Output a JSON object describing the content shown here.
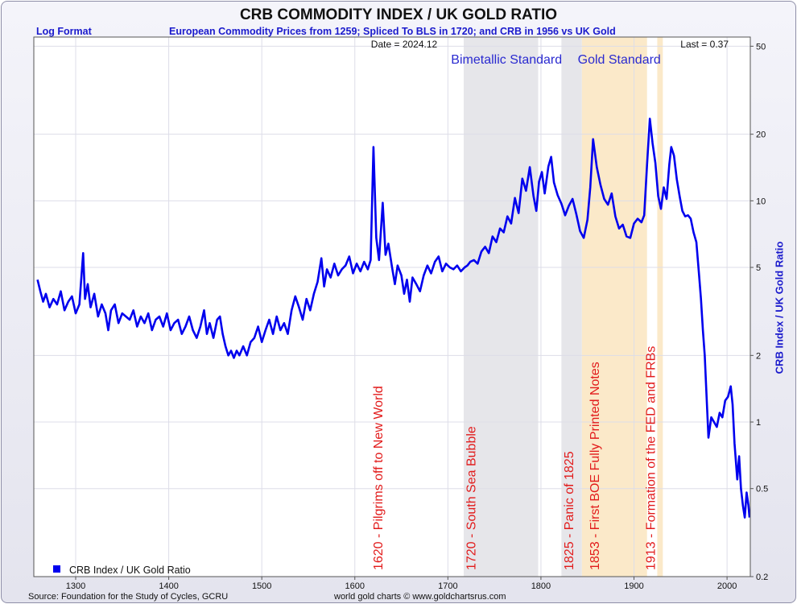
{
  "header": {
    "title": "CRB COMMODITY INDEX / UK GOLD RATIO",
    "left_note": "Log Format",
    "subtitle": "European Commodity Prices from 1259; Spliced To BLS in 1720; and CRB in 1956 vs UK Gold",
    "date_label": "Date = 2024.12",
    "last_label": "Last = 0.37"
  },
  "footer": {
    "source": "Source: Foundation for the Study of Cycles, GCRU",
    "credit": "world gold charts © www.goldchartsrus.com"
  },
  "colors": {
    "line": "#0000ee",
    "event_text": "#e21b1b",
    "bimetallic_band": "#e6e6ea",
    "gold_band": "#fbe9c9",
    "grid": "#dddde8",
    "axis_text": "#111111"
  },
  "chart_data": {
    "type": "line",
    "title": "CRB COMMODITY INDEX / UK GOLD RATIO",
    "ylabel": "CRB Index / UK Gold Ratio",
    "xlabel": "",
    "y_scale": "log",
    "xlim": [
      1255,
      2025
    ],
    "ylim": [
      0.2,
      55
    ],
    "x_ticks": [
      1300,
      1400,
      1500,
      1600,
      1700,
      1800,
      1900,
      2000
    ],
    "y_ticks": [
      50,
      20,
      10,
      5,
      2,
      1,
      0.5,
      0.2
    ],
    "grid": true,
    "legend": {
      "position": "bottom-left",
      "entries": [
        "CRB Index / UK Gold Ratio"
      ]
    },
    "regimes": [
      {
        "label": "Bimetallic Standard",
        "start": 1717,
        "end": 1797
      },
      {
        "label": "Gold Standard",
        "start": 1844,
        "end": 1914
      },
      {
        "label": "",
        "start": 1925,
        "end": 1931
      }
    ],
    "extra_band": {
      "start": 1822,
      "end": 1844
    },
    "events": [
      {
        "year": 1620,
        "label": "1620 - Pilgrims off to New World"
      },
      {
        "year": 1720,
        "label": "1720 - South Sea Bubble"
      },
      {
        "year": 1825,
        "label": "1825 - Panic of 1825"
      },
      {
        "year": 1853,
        "label": "1853 - First BOE Fully Printed Notes"
      },
      {
        "year": 1913,
        "label": "1913 - Formation of the FED and FRBs"
      }
    ],
    "series": [
      {
        "name": "CRB Index / UK Gold Ratio",
        "points": [
          [
            1259,
            4.4
          ],
          [
            1262,
            3.9
          ],
          [
            1265,
            3.5
          ],
          [
            1268,
            3.8
          ],
          [
            1272,
            3.3
          ],
          [
            1276,
            3.6
          ],
          [
            1280,
            3.4
          ],
          [
            1284,
            3.9
          ],
          [
            1288,
            3.2
          ],
          [
            1292,
            3.5
          ],
          [
            1296,
            3.7
          ],
          [
            1300,
            3.1
          ],
          [
            1304,
            3.4
          ],
          [
            1308,
            5.8
          ],
          [
            1310,
            3.6
          ],
          [
            1313,
            4.2
          ],
          [
            1316,
            3.3
          ],
          [
            1320,
            3.8
          ],
          [
            1324,
            3.0
          ],
          [
            1328,
            3.4
          ],
          [
            1332,
            3.1
          ],
          [
            1335,
            2.6
          ],
          [
            1338,
            3.2
          ],
          [
            1342,
            3.4
          ],
          [
            1346,
            2.8
          ],
          [
            1350,
            3.1
          ],
          [
            1354,
            3.0
          ],
          [
            1358,
            2.9
          ],
          [
            1362,
            3.2
          ],
          [
            1366,
            2.7
          ],
          [
            1370,
            3.0
          ],
          [
            1374,
            2.8
          ],
          [
            1378,
            3.1
          ],
          [
            1382,
            2.6
          ],
          [
            1386,
            2.9
          ],
          [
            1390,
            3.0
          ],
          [
            1394,
            2.7
          ],
          [
            1398,
            3.1
          ],
          [
            1402,
            2.6
          ],
          [
            1406,
            2.8
          ],
          [
            1410,
            2.9
          ],
          [
            1414,
            2.5
          ],
          [
            1418,
            2.7
          ],
          [
            1422,
            3.0
          ],
          [
            1426,
            2.6
          ],
          [
            1430,
            2.4
          ],
          [
            1434,
            2.7
          ],
          [
            1438,
            3.2
          ],
          [
            1441,
            2.5
          ],
          [
            1444,
            2.8
          ],
          [
            1448,
            2.4
          ],
          [
            1452,
            2.9
          ],
          [
            1455,
            3.0
          ],
          [
            1458,
            2.5
          ],
          [
            1461,
            2.2
          ],
          [
            1464,
            2.0
          ],
          [
            1467,
            2.1
          ],
          [
            1470,
            1.95
          ],
          [
            1473,
            2.1
          ],
          [
            1476,
            2.0
          ],
          [
            1480,
            2.2
          ],
          [
            1484,
            2.0
          ],
          [
            1488,
            2.3
          ],
          [
            1492,
            2.4
          ],
          [
            1496,
            2.7
          ],
          [
            1500,
            2.3
          ],
          [
            1504,
            2.6
          ],
          [
            1508,
            2.9
          ],
          [
            1512,
            2.5
          ],
          [
            1516,
            3.0
          ],
          [
            1520,
            2.6
          ],
          [
            1524,
            2.8
          ],
          [
            1528,
            2.5
          ],
          [
            1532,
            3.2
          ],
          [
            1536,
            3.7
          ],
          [
            1540,
            3.3
          ],
          [
            1544,
            2.9
          ],
          [
            1548,
            3.6
          ],
          [
            1552,
            3.2
          ],
          [
            1556,
            3.8
          ],
          [
            1560,
            4.3
          ],
          [
            1564,
            5.5
          ],
          [
            1567,
            4.1
          ],
          [
            1570,
            4.9
          ],
          [
            1574,
            4.5
          ],
          [
            1578,
            5.2
          ],
          [
            1582,
            4.6
          ],
          [
            1586,
            4.9
          ],
          [
            1590,
            5.1
          ],
          [
            1594,
            5.6
          ],
          [
            1598,
            4.7
          ],
          [
            1602,
            5.2
          ],
          [
            1606,
            4.8
          ],
          [
            1610,
            5.3
          ],
          [
            1614,
            4.9
          ],
          [
            1617,
            5.4
          ],
          [
            1620,
            17.5
          ],
          [
            1623,
            6.8
          ],
          [
            1626,
            5.4
          ],
          [
            1630,
            9.8
          ],
          [
            1633,
            5.7
          ],
          [
            1636,
            6.4
          ],
          [
            1640,
            5.0
          ],
          [
            1643,
            4.2
          ],
          [
            1646,
            5.1
          ],
          [
            1650,
            4.6
          ],
          [
            1653,
            3.8
          ],
          [
            1656,
            4.4
          ],
          [
            1659,
            3.5
          ],
          [
            1662,
            4.5
          ],
          [
            1666,
            4.2
          ],
          [
            1670,
            3.9
          ],
          [
            1674,
            4.6
          ],
          [
            1678,
            5.1
          ],
          [
            1682,
            4.7
          ],
          [
            1686,
            5.3
          ],
          [
            1690,
            5.6
          ],
          [
            1694,
            4.8
          ],
          [
            1698,
            5.2
          ],
          [
            1702,
            5.0
          ],
          [
            1706,
            4.9
          ],
          [
            1710,
            5.1
          ],
          [
            1714,
            4.8
          ],
          [
            1718,
            5.0
          ],
          [
            1721,
            5.1
          ],
          [
            1724,
            5.3
          ],
          [
            1728,
            5.4
          ],
          [
            1732,
            5.2
          ],
          [
            1736,
            5.9
          ],
          [
            1740,
            6.2
          ],
          [
            1744,
            5.8
          ],
          [
            1748,
            6.9
          ],
          [
            1752,
            6.5
          ],
          [
            1756,
            7.5
          ],
          [
            1760,
            7.2
          ],
          [
            1764,
            8.5
          ],
          [
            1768,
            7.9
          ],
          [
            1772,
            10.3
          ],
          [
            1776,
            8.8
          ],
          [
            1780,
            12.6
          ],
          [
            1784,
            11.1
          ],
          [
            1788,
            14.2
          ],
          [
            1792,
            10.5
          ],
          [
            1795,
            9.0
          ],
          [
            1798,
            12.2
          ],
          [
            1801,
            13.5
          ],
          [
            1804,
            10.8
          ],
          [
            1808,
            14.3
          ],
          [
            1811,
            15.8
          ],
          [
            1814,
            12.1
          ],
          [
            1818,
            10.6
          ],
          [
            1822,
            9.7
          ],
          [
            1826,
            8.6
          ],
          [
            1830,
            9.5
          ],
          [
            1834,
            10.2
          ],
          [
            1838,
            8.7
          ],
          [
            1842,
            7.3
          ],
          [
            1846,
            6.8
          ],
          [
            1850,
            8.2
          ],
          [
            1853,
            11.5
          ],
          [
            1856,
            19.0
          ],
          [
            1860,
            14.2
          ],
          [
            1864,
            11.8
          ],
          [
            1868,
            10.2
          ],
          [
            1872,
            9.6
          ],
          [
            1876,
            10.8
          ],
          [
            1880,
            8.5
          ],
          [
            1884,
            7.5
          ],
          [
            1888,
            7.8
          ],
          [
            1892,
            6.9
          ],
          [
            1896,
            6.8
          ],
          [
            1900,
            7.9
          ],
          [
            1904,
            8.3
          ],
          [
            1908,
            8.0
          ],
          [
            1911,
            8.6
          ],
          [
            1914,
            14.5
          ],
          [
            1917,
            23.5
          ],
          [
            1920,
            18.2
          ],
          [
            1923,
            14.8
          ],
          [
            1926,
            10.5
          ],
          [
            1929,
            9.2
          ],
          [
            1932,
            11.5
          ],
          [
            1935,
            10.2
          ],
          [
            1938,
            14.6
          ],
          [
            1940,
            17.5
          ],
          [
            1943,
            16.0
          ],
          [
            1946,
            12.5
          ],
          [
            1949,
            10.5
          ],
          [
            1952,
            9.0
          ],
          [
            1955,
            8.5
          ],
          [
            1958,
            8.6
          ],
          [
            1961,
            8.3
          ],
          [
            1964,
            7.2
          ],
          [
            1967,
            6.5
          ],
          [
            1970,
            4.6
          ],
          [
            1972,
            3.6
          ],
          [
            1974,
            2.6
          ],
          [
            1976,
            2.0
          ],
          [
            1978,
            1.3
          ],
          [
            1980,
            0.85
          ],
          [
            1983,
            1.05
          ],
          [
            1986,
            1.0
          ],
          [
            1989,
            0.95
          ],
          [
            1992,
            1.1
          ],
          [
            1995,
            1.05
          ],
          [
            1998,
            1.25
          ],
          [
            2001,
            1.3
          ],
          [
            2004,
            1.45
          ],
          [
            2006,
            1.2
          ],
          [
            2008,
            0.8
          ],
          [
            2011,
            0.55
          ],
          [
            2013,
            0.7
          ],
          [
            2015,
            0.5
          ],
          [
            2017,
            0.42
          ],
          [
            2019,
            0.37
          ],
          [
            2021,
            0.48
          ],
          [
            2023,
            0.42
          ],
          [
            2024.12,
            0.37
          ]
        ]
      }
    ]
  }
}
